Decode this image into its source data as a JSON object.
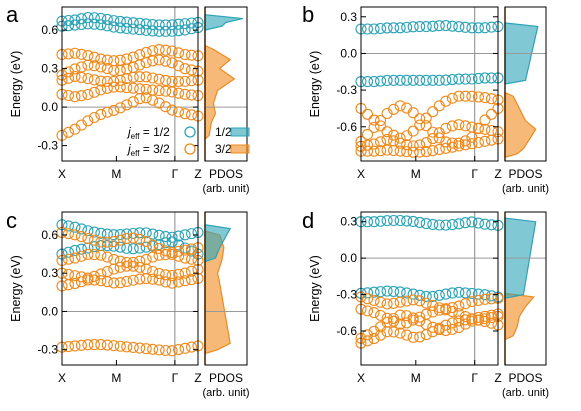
{
  "colors": {
    "j12": "#2ba3b8",
    "j32": "#f08a1c",
    "pdos_axis": "#b5651d"
  },
  "icons": {
    "legend_j12": "circle-outline-teal",
    "legend_j32": "circle-outline-orange"
  },
  "common": {
    "ylabel": "Energy (eV)",
    "xticks": [
      "X",
      "M",
      "Γ",
      "Z"
    ],
    "pdos_label": "PDOS",
    "pdos_unit": "(arb. unit)"
  },
  "legend": {
    "jeff_12": "j",
    "jeff_12_sub": "eff",
    "jeff_12_val": " = 1/2",
    "jeff_32": "j",
    "jeff_32_sub": "eff",
    "jeff_32_val": " = 3/2",
    "pdos_12": "1/2",
    "pdos_32": "3/2"
  },
  "chart_data": [
    {
      "panel": "a",
      "type": "scatter",
      "ylabel": "Energy (eV)",
      "ylim": [
        -0.42,
        0.78
      ],
      "yticks": [
        "-0.3",
        "0.0",
        "0.3",
        "0.6"
      ],
      "ytick_values": [
        -0.3,
        0.0,
        0.3,
        0.6
      ],
      "xticks": [
        "X",
        "M",
        "Γ",
        "Z"
      ],
      "series": [
        {
          "name": "jeff = 1/2",
          "color": "j12",
          "bands": [
            [
              0.67,
              0.68,
              0.7,
              0.69,
              0.67,
              0.66,
              0.65,
              0.64,
              0.64,
              0.65,
              0.66
            ],
            [
              0.63,
              0.64,
              0.65,
              0.64,
              0.62,
              0.61,
              0.6,
              0.59,
              0.59,
              0.6,
              0.62
            ]
          ]
        },
        {
          "name": "jeff = 3/2",
          "color": "j32",
          "bands": [
            [
              0.41,
              0.42,
              0.4,
              0.37,
              0.36,
              0.38,
              0.42,
              0.45,
              0.44,
              0.41,
              0.4
            ],
            [
              0.25,
              0.3,
              0.33,
              0.31,
              0.28,
              0.3,
              0.34,
              0.37,
              0.35,
              0.3,
              0.28
            ],
            [
              0.21,
              0.24,
              0.22,
              0.2,
              0.2,
              0.23,
              0.24,
              0.22,
              0.2,
              0.2,
              0.21
            ],
            [
              0.1,
              0.08,
              0.1,
              0.14,
              0.16,
              0.15,
              0.14,
              0.13,
              0.12,
              0.1,
              0.09
            ],
            [
              -0.22,
              -0.17,
              -0.1,
              -0.05,
              -0.02,
              0.03,
              0.08,
              0.04,
              -0.02,
              -0.05,
              -0.07
            ]
          ]
        }
      ],
      "pdos": {
        "j12": [
          [
            0.69,
            0.9
          ],
          [
            0.66,
            0.5
          ],
          [
            0.63,
            0.4
          ]
        ],
        "j32": [
          [
            0.45,
            0.2
          ],
          [
            0.37,
            0.6
          ],
          [
            0.3,
            0.35
          ],
          [
            0.22,
            0.7
          ],
          [
            0.13,
            0.3
          ],
          [
            0.03,
            0.2
          ],
          [
            -0.05,
            0.25
          ],
          [
            -0.12,
            0.15
          ],
          [
            -0.22,
            0.1
          ]
        ]
      },
      "legend": true,
      "pdos_legend": true
    },
    {
      "panel": "b",
      "type": "scatter",
      "ylabel": "Energy (eV)",
      "ylim": [
        -0.88,
        0.38
      ],
      "yticks": [
        "-0.6",
        "-0.3",
        "0.0",
        "0.3"
      ],
      "ytick_values": [
        -0.6,
        -0.3,
        0.0,
        0.3
      ],
      "xticks": [
        "X",
        "M",
        "Γ",
        "Z"
      ],
      "series": [
        {
          "name": "jeff = 1/2",
          "color": "j12",
          "bands": [
            [
              0.2,
              0.2,
              0.21,
              0.21,
              0.22,
              0.22,
              0.23,
              0.22,
              0.21,
              0.21,
              0.22
            ],
            [
              -0.23,
              -0.23,
              -0.22,
              -0.22,
              -0.22,
              -0.22,
              -0.22,
              -0.21,
              -0.21,
              -0.2,
              -0.2
            ]
          ]
        },
        {
          "name": "jeff = 3/2",
          "color": "j32",
          "bands": [
            [
              -0.45,
              -0.55,
              -0.65,
              -0.7,
              -0.62,
              -0.5,
              -0.4,
              -0.35,
              -0.35,
              -0.36,
              -0.38
            ],
            [
              -0.72,
              -0.6,
              -0.48,
              -0.42,
              -0.5,
              -0.62,
              -0.72,
              -0.74,
              -0.7,
              -0.55,
              -0.45
            ],
            [
              -0.76,
              -0.74,
              -0.7,
              -0.74,
              -0.76,
              -0.72,
              -0.62,
              -0.58,
              -0.6,
              -0.62,
              -0.64
            ],
            [
              -0.8,
              -0.8,
              -0.79,
              -0.8,
              -0.81,
              -0.8,
              -0.78,
              -0.76,
              -0.74,
              -0.72,
              -0.7
            ]
          ]
        }
      ],
      "pdos": {
        "j12": [
          [
            0.22,
            0.8
          ],
          [
            -0.22,
            0.5
          ]
        ],
        "j32": [
          [
            -0.35,
            0.2
          ],
          [
            -0.45,
            0.35
          ],
          [
            -0.55,
            0.5
          ],
          [
            -0.62,
            0.75
          ],
          [
            -0.7,
            0.6
          ],
          [
            -0.78,
            0.45
          ],
          [
            -0.82,
            0.3
          ]
        ]
      }
    },
    {
      "panel": "c",
      "type": "scatter",
      "ylabel": "Energy (eV)",
      "ylim": [
        -0.42,
        0.78
      ],
      "yticks": [
        "-0.3",
        "0.0",
        "0.3",
        "0.6"
      ],
      "ytick_values": [
        -0.3,
        0.0,
        0.3,
        0.6
      ],
      "xticks": [
        "X",
        "M",
        "Γ",
        "Z"
      ],
      "series": [
        {
          "name": "jeff = 1/2",
          "color": "j12",
          "bands": [
            [
              0.68,
              0.66,
              0.63,
              0.61,
              0.6,
              0.61,
              0.62,
              0.6,
              0.58,
              0.6,
              0.62
            ],
            [
              0.45,
              0.48,
              0.5,
              0.52,
              0.51,
              0.49,
              0.5,
              0.52,
              0.55,
              0.5,
              0.45
            ]
          ]
        },
        {
          "name": "jeff = 3/2",
          "color": "j32",
          "bands": [
            [
              0.62,
              0.6,
              0.57,
              0.54,
              0.55,
              0.58,
              0.56,
              0.5,
              0.46,
              0.48,
              0.5
            ],
            [
              0.4,
              0.42,
              0.45,
              0.44,
              0.4,
              0.38,
              0.4,
              0.44,
              0.45,
              0.42,
              0.4
            ],
            [
              0.3,
              0.28,
              0.26,
              0.3,
              0.34,
              0.36,
              0.34,
              0.3,
              0.28,
              0.3,
              0.33
            ],
            [
              0.2,
              0.22,
              0.25,
              0.24,
              0.22,
              0.24,
              0.26,
              0.25,
              0.22,
              0.24,
              0.26
            ],
            [
              -0.28,
              -0.27,
              -0.26,
              -0.26,
              -0.27,
              -0.28,
              -0.29,
              -0.3,
              -0.31,
              -0.29,
              -0.27
            ]
          ]
        }
      ],
      "pdos": {
        "j12": [
          [
            0.65,
            0.6
          ],
          [
            0.5,
            0.35
          ],
          [
            0.42,
            0.25
          ]
        ],
        "j32": [
          [
            0.6,
            0.35
          ],
          [
            0.5,
            0.45
          ],
          [
            0.4,
            0.4
          ],
          [
            0.3,
            0.3
          ],
          [
            0.22,
            0.35
          ],
          [
            -0.25,
            0.6
          ],
          [
            -0.3,
            0.3
          ]
        ]
      }
    },
    {
      "panel": "d",
      "type": "scatter",
      "ylabel": "Energy (eV)",
      "ylim": [
        -0.88,
        0.38
      ],
      "yticks": [
        "-0.6",
        "-0.3",
        "0.0",
        "0.3"
      ],
      "ytick_values": [
        -0.6,
        -0.3,
        0.0,
        0.3
      ],
      "xticks": [
        "X",
        "M",
        "Γ",
        "Z"
      ],
      "series": [
        {
          "name": "jeff = 1/2",
          "color": "j12",
          "bands": [
            [
              0.3,
              0.3,
              0.31,
              0.31,
              0.3,
              0.28,
              0.27,
              0.28,
              0.3,
              0.28,
              0.27
            ],
            [
              -0.29,
              -0.28,
              -0.27,
              -0.28,
              -0.3,
              -0.32,
              -0.3,
              -0.28,
              -0.29,
              -0.3,
              -0.32
            ]
          ]
        },
        {
          "name": "jeff = 3/2",
          "color": "j32",
          "bands": [
            [
              -0.32,
              -0.35,
              -0.38,
              -0.36,
              -0.34,
              -0.38,
              -0.42,
              -0.4,
              -0.36,
              -0.34,
              -0.33
            ],
            [
              -0.42,
              -0.45,
              -0.5,
              -0.55,
              -0.5,
              -0.45,
              -0.42,
              -0.45,
              -0.5,
              -0.48,
              -0.46
            ],
            [
              -0.66,
              -0.6,
              -0.52,
              -0.46,
              -0.5,
              -0.56,
              -0.6,
              -0.58,
              -0.52,
              -0.5,
              -0.48
            ],
            [
              -0.7,
              -0.66,
              -0.6,
              -0.62,
              -0.66,
              -0.62,
              -0.56,
              -0.52,
              -0.5,
              -0.52,
              -0.55
            ]
          ]
        }
      ],
      "pdos": {
        "j12": [
          [
            0.3,
            0.75
          ],
          [
            -0.3,
            0.45
          ]
        ],
        "j32": [
          [
            -0.32,
            0.7
          ],
          [
            -0.4,
            0.5
          ],
          [
            -0.48,
            0.35
          ],
          [
            -0.56,
            0.3
          ],
          [
            -0.64,
            0.2
          ]
        ]
      }
    }
  ]
}
